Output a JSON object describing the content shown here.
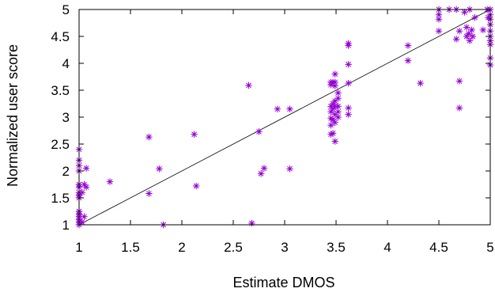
{
  "chart_data": {
    "type": "scatter",
    "title": "",
    "xlabel": "Estimate DMOS",
    "ylabel": "Normalized user score",
    "xlim": [
      1,
      5
    ],
    "ylim": [
      1,
      5
    ],
    "x_ticks": [
      "1",
      "1.5",
      "2",
      "2.5",
      "3",
      "3.5",
      "4",
      "4.5",
      "5"
    ],
    "y_ticks": [
      "1",
      "1.5",
      "2",
      "2.5",
      "3",
      "3.5",
      "4",
      "4.5",
      "5"
    ],
    "grid": false,
    "legend": "none",
    "marker": "asterisk",
    "marker_color": "#9400d3",
    "reference_line": {
      "from": [
        1,
        1
      ],
      "to": [
        5,
        5
      ],
      "color": "#000000"
    },
    "series": [
      {
        "points": [
          [
            1.0,
            1.0
          ],
          [
            1.0,
            1.05
          ],
          [
            1.0,
            1.1
          ],
          [
            1.0,
            1.15
          ],
          [
            1.0,
            1.2
          ],
          [
            1.0,
            1.25
          ],
          [
            1.0,
            1.5
          ],
          [
            1.0,
            1.55
          ],
          [
            1.0,
            1.6
          ],
          [
            1.0,
            1.7
          ],
          [
            1.0,
            1.75
          ],
          [
            1.0,
            2.0
          ],
          [
            1.0,
            2.1
          ],
          [
            1.0,
            2.2
          ],
          [
            1.0,
            2.4
          ],
          [
            1.03,
            1.05
          ],
          [
            1.03,
            1.6
          ],
          [
            1.05,
            1.15
          ],
          [
            1.05,
            1.75
          ],
          [
            1.07,
            1.7
          ],
          [
            1.07,
            2.05
          ],
          [
            1.3,
            1.8
          ],
          [
            1.68,
            2.63
          ],
          [
            1.68,
            1.58
          ],
          [
            1.78,
            2.04
          ],
          [
            1.82,
            1.0
          ],
          [
            2.12,
            2.68
          ],
          [
            2.14,
            1.72
          ],
          [
            2.65,
            3.59
          ],
          [
            2.68,
            1.03
          ],
          [
            2.75,
            2.73
          ],
          [
            2.77,
            1.95
          ],
          [
            2.8,
            2.05
          ],
          [
            2.93,
            3.15
          ],
          [
            3.05,
            3.15
          ],
          [
            3.05,
            2.04
          ],
          [
            3.45,
            3.65
          ],
          [
            3.45,
            3.6
          ],
          [
            3.45,
            3.2
          ],
          [
            3.45,
            3.1
          ],
          [
            3.45,
            2.98
          ],
          [
            3.45,
            2.85
          ],
          [
            3.45,
            2.68
          ],
          [
            3.47,
            3.65
          ],
          [
            3.47,
            3.25
          ],
          [
            3.47,
            3.15
          ],
          [
            3.47,
            2.95
          ],
          [
            3.47,
            2.7
          ],
          [
            3.49,
            3.8
          ],
          [
            3.49,
            3.65
          ],
          [
            3.49,
            3.58
          ],
          [
            3.49,
            3.3
          ],
          [
            3.49,
            3.2
          ],
          [
            3.49,
            3.05
          ],
          [
            3.49,
            2.9
          ],
          [
            3.49,
            2.55
          ],
          [
            3.52,
            3.45
          ],
          [
            3.52,
            3.35
          ],
          [
            3.52,
            3.2
          ],
          [
            3.52,
            3.1
          ],
          [
            3.52,
            3.0
          ],
          [
            3.62,
            4.37
          ],
          [
            3.62,
            4.33
          ],
          [
            3.62,
            3.98
          ],
          [
            3.62,
            3.63
          ],
          [
            3.62,
            3.17
          ],
          [
            3.62,
            3.05
          ],
          [
            4.2,
            4.33
          ],
          [
            4.2,
            4.05
          ],
          [
            4.32,
            3.63
          ],
          [
            4.5,
            5.0
          ],
          [
            4.5,
            4.9
          ],
          [
            4.5,
            4.82
          ],
          [
            4.5,
            4.6
          ],
          [
            4.6,
            5.0
          ],
          [
            4.67,
            5.0
          ],
          [
            4.67,
            4.45
          ],
          [
            4.7,
            4.6
          ],
          [
            4.7,
            3.67
          ],
          [
            4.7,
            3.17
          ],
          [
            4.75,
            4.95
          ],
          [
            4.77,
            4.67
          ],
          [
            4.77,
            4.5
          ],
          [
            4.79,
            4.55
          ],
          [
            4.8,
            5.0
          ],
          [
            4.8,
            4.42
          ],
          [
            4.82,
            4.62
          ],
          [
            4.83,
            4.5
          ],
          [
            4.85,
            4.85
          ],
          [
            4.93,
            4.62
          ],
          [
            4.97,
            5.0
          ],
          [
            4.98,
            4.85
          ],
          [
            5.0,
            5.0
          ],
          [
            5.0,
            4.9
          ],
          [
            5.0,
            4.82
          ],
          [
            5.0,
            4.72
          ],
          [
            5.0,
            4.6
          ],
          [
            5.0,
            4.5
          ],
          [
            5.0,
            4.42
          ],
          [
            5.0,
            4.35
          ],
          [
            5.0,
            4.1
          ],
          [
            5.0,
            3.97
          ]
        ]
      }
    ]
  }
}
